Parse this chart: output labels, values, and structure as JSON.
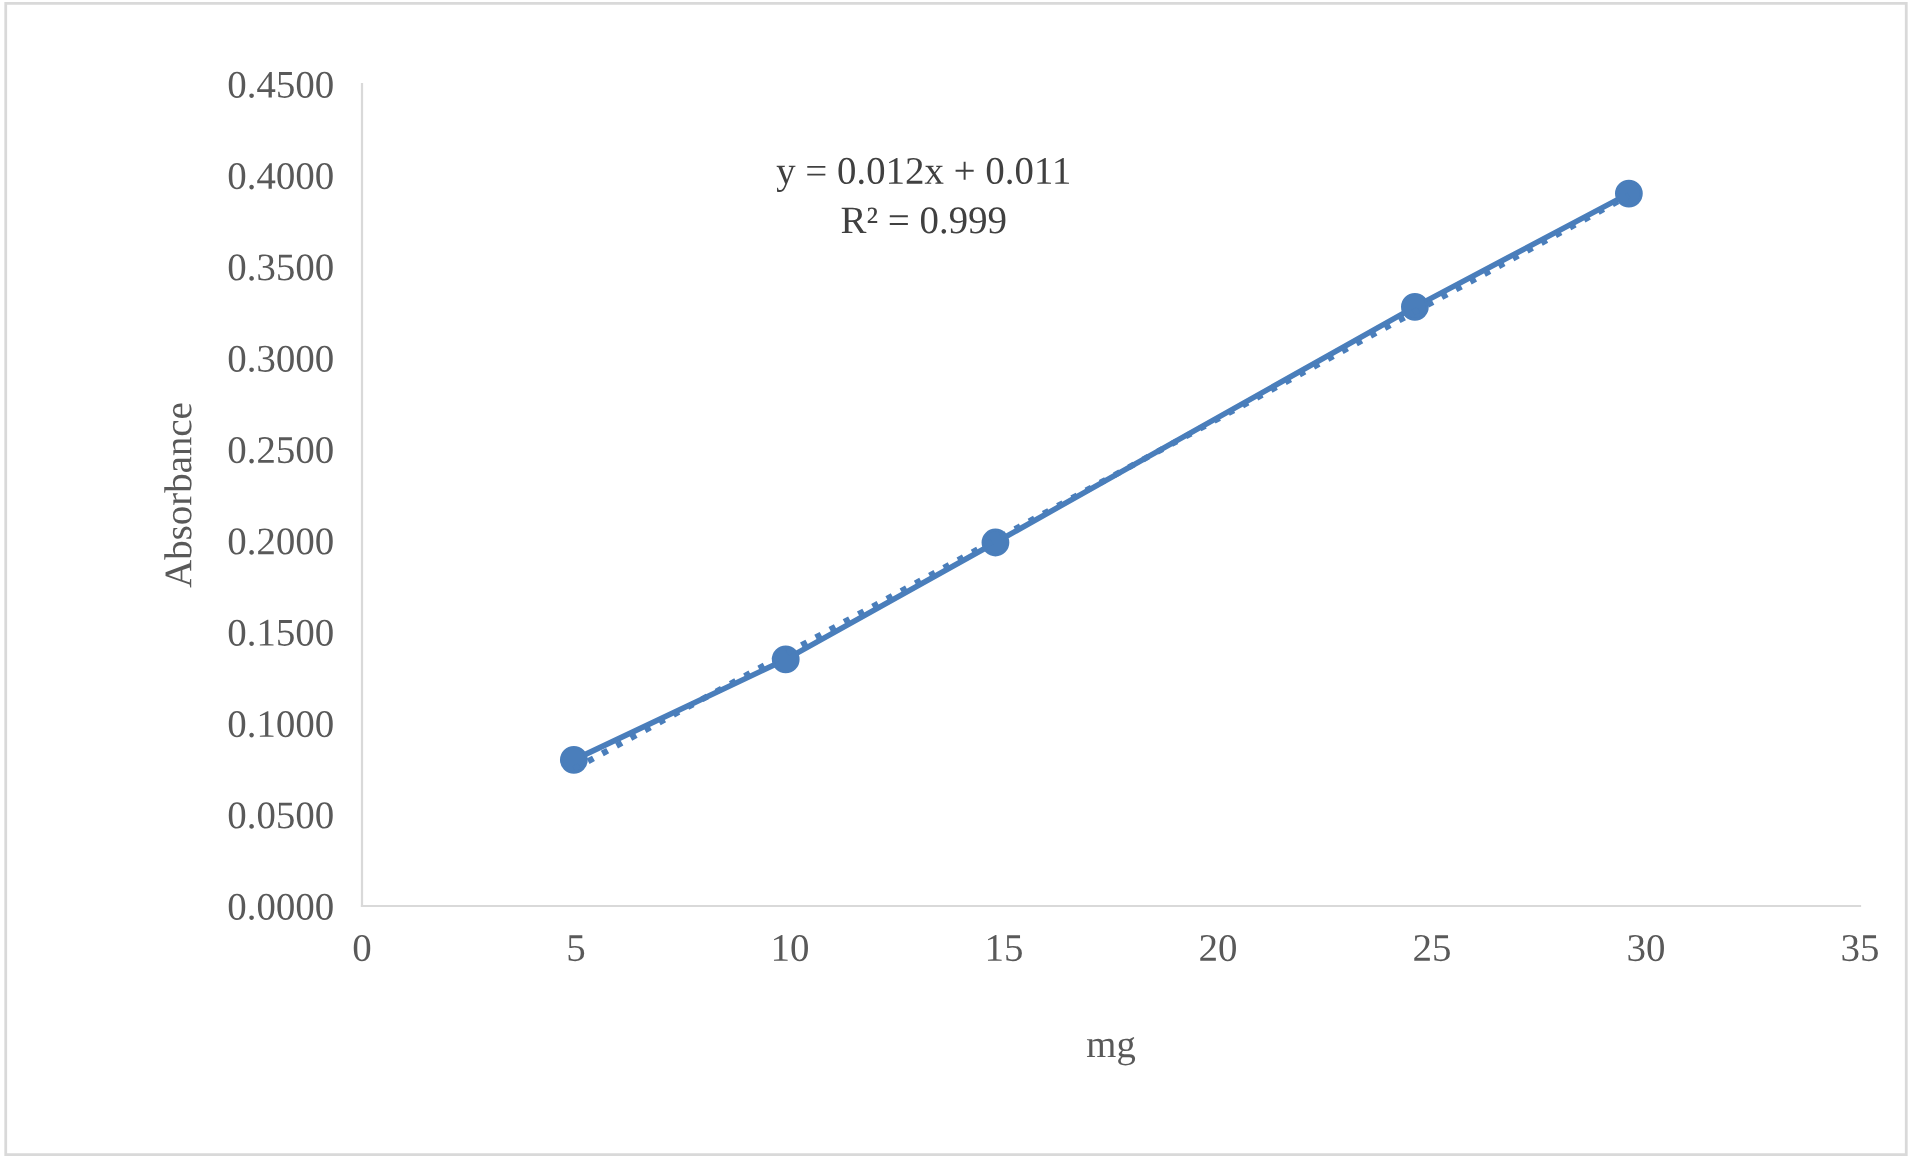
{
  "chart_data": {
    "type": "line",
    "xlabel": "mg",
    "ylabel": "Absorbance",
    "series": [
      {
        "color": "#4a7ebb",
        "x": [
          4.95,
          9.9,
          14.8,
          24.6,
          29.6
        ],
        "values": [
          0.08,
          0.135,
          0.199,
          0.328,
          0.39
        ],
        "marker": "circle",
        "line_style": "solid"
      },
      {
        "color": "#4a7ebb",
        "x": [
          4.95,
          29.6
        ],
        "values": [
          0.075,
          0.389
        ],
        "marker": "none",
        "line_style": "dotted"
      }
    ],
    "annotations": [
      "y = 0.012x + 0.011",
      "R² = 0.999"
    ],
    "xlim": [
      0,
      35
    ],
    "xticks": [
      0,
      5,
      10,
      15,
      20,
      25,
      30,
      35
    ],
    "ylim": [
      0,
      0.45
    ],
    "yticks": [
      {
        "value": 0,
        "label": "0.0000"
      },
      {
        "value": 0.05,
        "label": "0.0500"
      },
      {
        "value": 0.1,
        "label": "0.1000"
      },
      {
        "value": 0.15,
        "label": "0.1500"
      },
      {
        "value": 0.2,
        "label": "0.2000"
      },
      {
        "value": 0.25,
        "label": "0.2500"
      },
      {
        "value": 0.3,
        "label": "0.3000"
      },
      {
        "value": 0.35,
        "label": "0.3500"
      },
      {
        "value": 0.4,
        "label": "0.4000"
      },
      {
        "value": 0.45,
        "label": "0.4500"
      }
    ],
    "grid": false,
    "legend": false
  }
}
